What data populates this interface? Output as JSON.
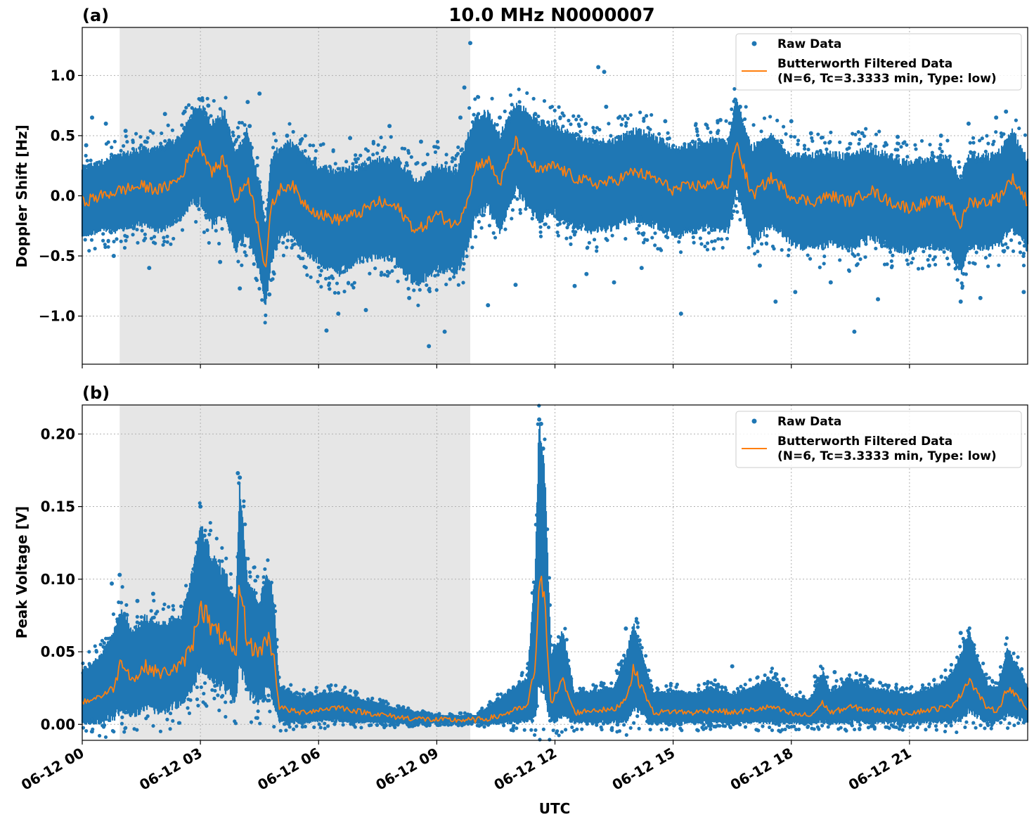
{
  "figure_title": "10.0 MHz N0000007",
  "xlabel": "UTC",
  "colors": {
    "raw": "#1f77b4",
    "filtered": "#ff7f0e",
    "shade": "#e6e6e6",
    "grid": "#b0b0b0"
  },
  "chart_data": [
    {
      "panel": "(a)",
      "type": "scatter",
      "title": "10.0 MHz N0000007",
      "ylabel": "Doppler Shift [Hz]",
      "xlim": [
        0,
        24
      ],
      "ylim": [
        -1.4,
        1.4
      ],
      "yticks": [
        -1.0,
        -0.5,
        0.0,
        0.5,
        1.0
      ],
      "ytick_labels": [
        "−1.0",
        "−0.5",
        "0.0",
        "0.5",
        "1.0"
      ],
      "xticks": [
        0,
        3,
        6,
        9,
        12,
        15,
        18,
        21
      ],
      "xtick_labels": [
        "06-12 00",
        "06-12 03",
        "06-12 06",
        "06-12 09",
        "06-12 12",
        "06-12 15",
        "06-12 18",
        "06-12 21"
      ],
      "shaded_interval_hours": [
        0.95,
        9.85
      ],
      "legend": {
        "position": "top-right",
        "entries": [
          "Raw Data",
          "Butterworth Filtered Data",
          "(N=6, Tc=3.3333 min, Type: low)"
        ]
      },
      "series": [
        {
          "name": "Butterworth Filtered Data",
          "style": "line",
          "x": [
            0,
            0.5,
            1.0,
            1.5,
            2.0,
            2.5,
            2.8,
            3.0,
            3.3,
            3.6,
            3.9,
            4.2,
            4.5,
            4.65,
            4.8,
            5.0,
            5.3,
            5.6,
            6.0,
            6.5,
            7.0,
            7.5,
            8.0,
            8.5,
            9.0,
            9.5,
            9.8,
            10.0,
            10.3,
            10.6,
            11.0,
            11.3,
            11.6,
            12.0,
            12.5,
            13.0,
            13.5,
            14.0,
            14.5,
            15.0,
            15.5,
            16.0,
            16.4,
            16.6,
            17.0,
            17.5,
            18.0,
            18.5,
            19.0,
            19.5,
            20.0,
            20.5,
            21.0,
            21.5,
            22.0,
            22.3,
            22.5,
            23.0,
            23.3,
            23.6,
            24.0
          ],
          "y": [
            -0.05,
            0.0,
            0.05,
            0.08,
            0.05,
            0.15,
            0.38,
            0.42,
            0.2,
            0.3,
            -0.05,
            0.15,
            -0.3,
            -0.62,
            -0.1,
            0.05,
            0.1,
            -0.05,
            -0.15,
            -0.2,
            -0.15,
            -0.05,
            -0.1,
            -0.3,
            -0.15,
            -0.25,
            0.0,
            0.25,
            0.3,
            0.1,
            0.45,
            0.3,
            0.2,
            0.25,
            0.15,
            0.1,
            0.12,
            0.2,
            0.15,
            0.05,
            0.08,
            0.1,
            0.08,
            0.45,
            0.0,
            0.15,
            0.0,
            -0.05,
            0.0,
            -0.05,
            0.05,
            -0.05,
            -0.1,
            -0.05,
            -0.05,
            -0.25,
            -0.05,
            -0.05,
            0.0,
            0.15,
            -0.05
          ]
        },
        {
          "name": "Raw Data",
          "style": "dense-band",
          "x": [
            0,
            0.5,
            1.0,
            1.5,
            2.0,
            2.5,
            2.8,
            3.0,
            3.3,
            3.6,
            3.9,
            4.2,
            4.5,
            4.65,
            4.8,
            5.0,
            5.3,
            5.6,
            6.0,
            6.5,
            7.0,
            7.5,
            8.0,
            8.5,
            9.0,
            9.5,
            9.8,
            10.0,
            10.3,
            10.6,
            11.0,
            11.3,
            11.6,
            12.0,
            12.5,
            13.0,
            13.5,
            14.0,
            14.5,
            15.0,
            15.5,
            16.0,
            16.4,
            16.6,
            17.0,
            17.5,
            18.0,
            18.5,
            19.0,
            19.5,
            20.0,
            20.5,
            21.0,
            21.5,
            22.0,
            22.3,
            22.5,
            23.0,
            23.3,
            23.6,
            24.0
          ],
          "y_min": [
            -0.3,
            -0.25,
            -0.25,
            -0.2,
            -0.25,
            -0.15,
            0.0,
            0.0,
            -0.2,
            -0.1,
            -0.4,
            -0.25,
            -0.6,
            -0.88,
            -0.5,
            -0.3,
            -0.25,
            -0.4,
            -0.5,
            -0.6,
            -0.5,
            -0.45,
            -0.5,
            -0.7,
            -0.55,
            -0.6,
            -0.35,
            -0.1,
            -0.05,
            -0.25,
            0.1,
            -0.05,
            -0.15,
            -0.1,
            -0.2,
            -0.25,
            -0.22,
            -0.15,
            -0.2,
            -0.28,
            -0.25,
            -0.22,
            -0.25,
            0.1,
            -0.35,
            -0.2,
            -0.35,
            -0.4,
            -0.35,
            -0.4,
            -0.3,
            -0.38,
            -0.42,
            -0.38,
            -0.38,
            -0.6,
            -0.38,
            -0.38,
            -0.35,
            -0.2,
            -0.4
          ],
          "y_max": [
            0.2,
            0.25,
            0.3,
            0.35,
            0.35,
            0.45,
            0.65,
            0.7,
            0.55,
            0.65,
            0.3,
            0.5,
            0.05,
            -0.3,
            0.25,
            0.35,
            0.4,
            0.3,
            0.2,
            0.15,
            0.2,
            0.25,
            0.25,
            0.05,
            0.2,
            0.15,
            0.45,
            0.6,
            0.65,
            0.45,
            0.72,
            0.65,
            0.55,
            0.55,
            0.45,
            0.4,
            0.42,
            0.5,
            0.45,
            0.35,
            0.38,
            0.42,
            0.4,
            0.75,
            0.35,
            0.45,
            0.3,
            0.28,
            0.3,
            0.28,
            0.35,
            0.28,
            0.22,
            0.25,
            0.28,
            0.1,
            0.28,
            0.28,
            0.32,
            0.5,
            0.25
          ],
          "outliers_x": [
            0.1,
            0.25,
            0.6,
            0.8,
            1.1,
            1.6,
            1.7,
            2.1,
            2.6,
            3.0,
            3.2,
            3.5,
            4.0,
            4.2,
            4.25,
            4.3,
            4.5,
            4.75,
            5.2,
            6.2,
            6.5,
            6.8,
            7.2,
            7.8,
            8.3,
            8.6,
            8.8,
            9.2,
            9.6,
            9.7,
            9.85,
            10.3,
            10.6,
            11.0,
            11.5,
            12.5,
            12.8,
            13.1,
            13.25,
            13.3,
            13.5,
            14.2,
            14.8,
            15.2,
            15.5,
            16.2,
            16.7,
            17.2,
            17.6,
            18.0,
            18.1,
            18.5,
            19.0,
            19.6,
            19.8,
            20.2,
            20.7,
            21.5,
            21.8,
            22.3,
            22.5,
            22.8,
            23.2,
            23.45,
            23.9
          ],
          "outliers_y": [
            0.42,
            0.65,
            0.6,
            -0.5,
            0.54,
            0.45,
            -0.6,
            0.68,
            0.7,
            0.8,
            0.75,
            -0.55,
            -0.77,
            0.78,
            0.58,
            0.4,
            0.85,
            -0.82,
            0.5,
            -1.12,
            -0.98,
            0.48,
            -0.95,
            0.58,
            -0.85,
            0.45,
            -1.25,
            -1.13,
            0.65,
            0.9,
            1.27,
            -0.91,
            0.65,
            -0.74,
            0.68,
            -0.75,
            -0.65,
            1.07,
            1.03,
            0.74,
            -0.72,
            -0.6,
            0.62,
            -0.98,
            0.45,
            0.63,
            0.74,
            -0.58,
            -0.88,
            0.62,
            -0.8,
            0.52,
            -0.72,
            -1.13,
            0.52,
            -0.86,
            0.49,
            -0.58,
            0.5,
            -0.88,
            0.6,
            -0.85,
            0.65,
            0.7,
            -0.8
          ]
        }
      ]
    },
    {
      "panel": "(b)",
      "type": "scatter",
      "title": "",
      "ylabel": "Peak Voltage [V]",
      "xlim": [
        0,
        24
      ],
      "ylim": [
        -0.011,
        0.22
      ],
      "yticks": [
        0.0,
        0.05,
        0.1,
        0.15,
        0.2
      ],
      "ytick_labels": [
        "0.00",
        "0.05",
        "0.10",
        "0.15",
        "0.20"
      ],
      "xticks": [
        0,
        3,
        6,
        9,
        12,
        15,
        18,
        21
      ],
      "xtick_labels": [
        "06-12 00",
        "06-12 03",
        "06-12 06",
        "06-12 09",
        "06-12 12",
        "06-12 15",
        "06-12 18",
        "06-12 21"
      ],
      "shaded_interval_hours": [
        0.95,
        9.85
      ],
      "legend": {
        "position": "top-right",
        "entries": [
          "Raw Data",
          "Butterworth Filtered Data",
          "(N=6, Tc=3.3333 min, Type: low)"
        ]
      },
      "series": [
        {
          "name": "Butterworth Filtered Data",
          "style": "line",
          "x": [
            0,
            0.5,
            0.8,
            1.0,
            1.3,
            1.6,
            2.0,
            2.5,
            2.8,
            3.0,
            3.3,
            3.6,
            3.9,
            4.0,
            4.2,
            4.5,
            4.7,
            4.85,
            5.0,
            5.5,
            6.0,
            6.5,
            7.0,
            7.5,
            8.0,
            8.5,
            9.0,
            9.5,
            10.0,
            10.5,
            11.0,
            11.3,
            11.5,
            11.6,
            11.75,
            11.9,
            12.2,
            12.5,
            13.0,
            13.5,
            13.8,
            14.0,
            14.5,
            15.0,
            15.5,
            16.0,
            16.5,
            17.0,
            17.5,
            18.0,
            18.5,
            18.8,
            19.0,
            19.5,
            20.0,
            20.5,
            21.0,
            21.5,
            22.0,
            22.3,
            22.5,
            23.0,
            23.25,
            23.5,
            24.0
          ],
          "y": [
            0.015,
            0.02,
            0.025,
            0.045,
            0.03,
            0.04,
            0.035,
            0.04,
            0.055,
            0.085,
            0.065,
            0.06,
            0.045,
            0.1,
            0.055,
            0.05,
            0.06,
            0.05,
            0.012,
            0.008,
            0.01,
            0.012,
            0.009,
            0.007,
            0.005,
            0.004,
            0.003,
            0.003,
            0.003,
            0.005,
            0.01,
            0.012,
            0.04,
            0.1,
            0.08,
            0.015,
            0.03,
            0.008,
            0.01,
            0.01,
            0.018,
            0.038,
            0.008,
            0.009,
            0.008,
            0.01,
            0.008,
            0.01,
            0.012,
            0.007,
            0.006,
            0.015,
            0.008,
            0.012,
            0.01,
            0.009,
            0.008,
            0.01,
            0.012,
            0.02,
            0.032,
            0.01,
            0.01,
            0.026,
            0.01
          ]
        },
        {
          "name": "Raw Data",
          "style": "dense-band",
          "x": [
            0,
            0.5,
            0.8,
            1.0,
            1.3,
            1.6,
            2.0,
            2.5,
            2.8,
            3.0,
            3.3,
            3.6,
            3.9,
            4.0,
            4.2,
            4.5,
            4.7,
            4.85,
            5.0,
            5.5,
            6.0,
            6.5,
            7.0,
            7.5,
            8.0,
            8.5,
            9.0,
            9.5,
            10.0,
            10.5,
            11.0,
            11.3,
            11.5,
            11.6,
            11.75,
            11.9,
            12.2,
            12.5,
            13.0,
            13.5,
            13.8,
            14.0,
            14.5,
            15.0,
            15.5,
            16.0,
            16.5,
            17.0,
            17.5,
            18.0,
            18.5,
            18.8,
            19.0,
            19.5,
            20.0,
            20.5,
            21.0,
            21.5,
            22.0,
            22.3,
            22.5,
            23.0,
            23.25,
            23.5,
            24.0
          ],
          "y_min": [
            0.003,
            0.005,
            0.008,
            0.015,
            0.01,
            0.015,
            0.012,
            0.018,
            0.03,
            0.045,
            0.035,
            0.03,
            0.02,
            0.05,
            0.025,
            0.02,
            0.03,
            0.02,
            0.003,
            0.002,
            0.003,
            0.004,
            0.002,
            0.002,
            0.001,
            0.001,
            0.001,
            0.001,
            0.001,
            0.001,
            0.003,
            0.004,
            0.01,
            0.04,
            0.03,
            0.004,
            0.01,
            0.002,
            0.003,
            0.003,
            0.005,
            0.015,
            0.002,
            0.002,
            0.002,
            0.003,
            0.002,
            0.003,
            0.003,
            0.002,
            0.001,
            0.004,
            0.002,
            0.003,
            0.003,
            0.002,
            0.002,
            0.003,
            0.003,
            0.006,
            0.012,
            0.003,
            0.003,
            0.01,
            0.003
          ],
          "y_max": [
            0.035,
            0.045,
            0.06,
            0.075,
            0.06,
            0.07,
            0.065,
            0.07,
            0.1,
            0.13,
            0.11,
            0.1,
            0.08,
            0.16,
            0.095,
            0.08,
            0.1,
            0.085,
            0.025,
            0.018,
            0.02,
            0.022,
            0.017,
            0.014,
            0.01,
            0.008,
            0.006,
            0.006,
            0.006,
            0.015,
            0.025,
            0.03,
            0.1,
            0.2,
            0.16,
            0.045,
            0.06,
            0.02,
            0.022,
            0.024,
            0.045,
            0.065,
            0.02,
            0.022,
            0.02,
            0.024,
            0.02,
            0.024,
            0.03,
            0.018,
            0.016,
            0.035,
            0.02,
            0.03,
            0.024,
            0.022,
            0.02,
            0.024,
            0.03,
            0.045,
            0.06,
            0.025,
            0.025,
            0.05,
            0.025
          ],
          "outliers_x": [
            0.75,
            0.95,
            1.4,
            1.8,
            3.0,
            3.1,
            3.95,
            4.0,
            11.6,
            11.65,
            11.7,
            13.8,
            16.5,
            17.8,
            18.6,
            19.1,
            22.3,
            23.5
          ],
          "outliers_y": [
            0.097,
            0.103,
            0.085,
            0.09,
            0.15,
            0.13,
            0.173,
            0.17,
            0.21,
            0.207,
            0.19,
            0.066,
            0.04,
            0.031,
            0.033,
            0.036,
            0.063,
            0.05
          ]
        }
      ]
    }
  ]
}
